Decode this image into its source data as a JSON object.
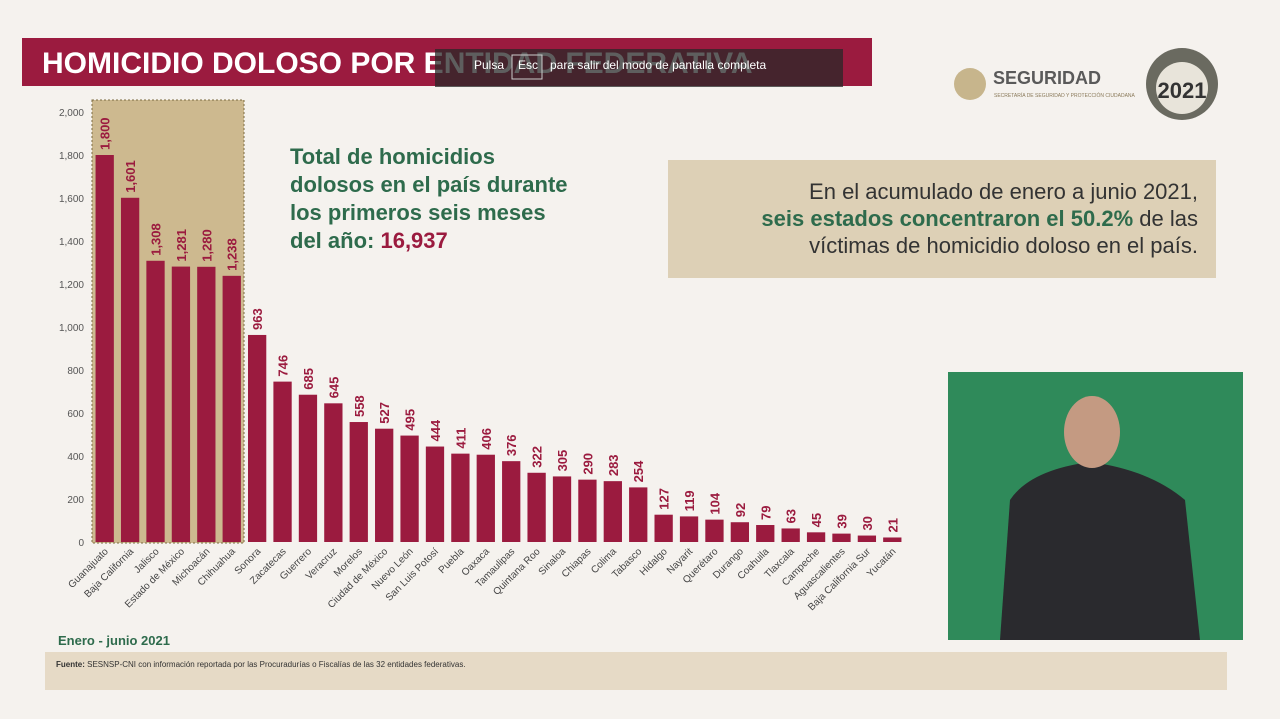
{
  "header": {
    "title": "HOMICIDIO DOLOSO POR ENTIDAD FEDERATIVA"
  },
  "overlay": {
    "key1": "Pulsa",
    "key2": "Esc",
    "message": "para salir del modo de pantalla completa"
  },
  "logos": {
    "ministry": "SEGURIDAD",
    "ministry_sub": "SECRETARÍA DE SEGURIDAD Y PROTECCIÓN CIUDADANA",
    "year": "2021"
  },
  "summary": {
    "lines": [
      "Total de homicidios",
      "dolosos en el país durante",
      "los primeros seis meses",
      "del año:"
    ],
    "total": "16,937"
  },
  "callout": {
    "line1": "En el acumulado de enero a junio 2021,",
    "highlight": "seis estados concentraron el 50.2%",
    "rest": "de las",
    "line3": "víctimas de homicidio doloso en el país."
  },
  "footer": {
    "label": "Fuente:",
    "text": "SESNSP-CNI con información reportada por las Procuradurías o Fiscalías de las 32 entidades federativas."
  },
  "chart_data": {
    "type": "bar",
    "subtitle": "Enero - junio 2021",
    "color": "#9b1b3f",
    "categories": [
      "Guanajuato",
      "Baja California",
      "Jalisco",
      "Estado de México",
      "Michoacán",
      "Chihuahua",
      "Sonora",
      "Zacatecas",
      "Guerrero",
      "Veracruz",
      "Morelos",
      "Ciudad de México",
      "Nuevo León",
      "San Luis Potosí",
      "Puebla",
      "Oaxaca",
      "Tamaulipas",
      "Quintana Roo",
      "Sinaloa",
      "Chiapas",
      "Colima",
      "Tabasco",
      "Hidalgo",
      "Nayarit",
      "Querétaro",
      "Durango",
      "Coahuila",
      "Tlaxcala",
      "Campeche",
      "Aguascalientes",
      "Baja California Sur",
      "Yucatán"
    ],
    "values": [
      1800,
      1601,
      1308,
      1281,
      1280,
      1238,
      963,
      746,
      685,
      645,
      558,
      527,
      495,
      444,
      411,
      406,
      376,
      322,
      305,
      290,
      283,
      254,
      127,
      119,
      104,
      92,
      79,
      63,
      45,
      39,
      30,
      21
    ],
    "value_labels": [
      "1,800",
      "1,601",
      "1,308",
      "1,281",
      "1,280",
      "1,238",
      "963",
      "746",
      "685",
      "645",
      "558",
      "527",
      "495",
      "444",
      "411",
      "406",
      "376",
      "322",
      "305",
      "290",
      "283",
      "254",
      "127",
      "119",
      "104",
      "92",
      "79",
      "63",
      "45",
      "39",
      "30",
      "21"
    ],
    "ylim": [
      0,
      2000
    ],
    "yticks": [
      0,
      200,
      400,
      600,
      800,
      {
        "value": 1000,
        "label": "1,000"
      },
      {
        "value": 1200,
        "label": "1,200"
      },
      {
        "value": 1400,
        "label": "1,400"
      },
      {
        "value": 1600,
        "label": "1,600"
      },
      {
        "value": 1800,
        "label": "1,800"
      },
      {
        "value": 2000,
        "label": "2,000"
      }
    ],
    "grid": false
  }
}
